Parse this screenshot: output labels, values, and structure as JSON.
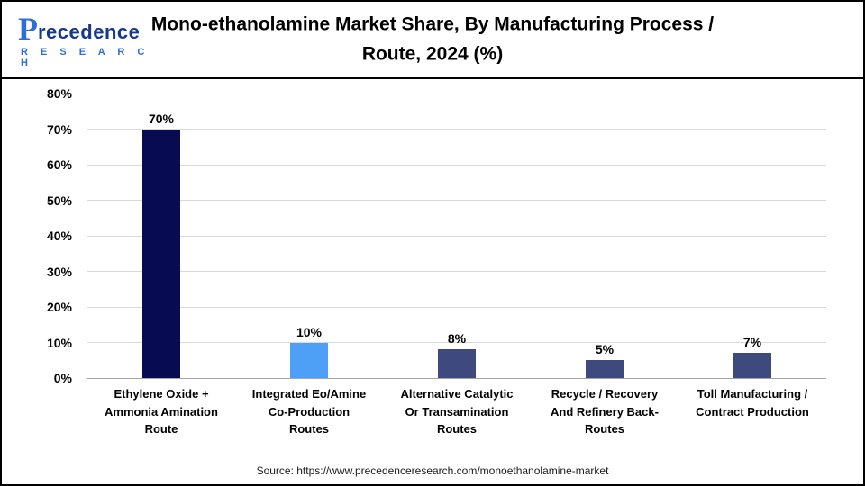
{
  "logo": {
    "p": "P",
    "name_rest": "recedence",
    "sub": "R E S E A R C H"
  },
  "header": {
    "title": "Mono-ethanolamine Market Share, By Manufacturing Process / Route, 2024 (%)"
  },
  "chart_data": {
    "type": "bar",
    "title": "Mono-ethanolamine Market Share, By Manufacturing Process / Route, 2024 (%)",
    "categories": [
      "Ethylene Oxide +\nAmmonia Amination\nRoute",
      "Integrated Eo/Amine\nCo-Production\nRoutes",
      "Alternative Catalytic\nOr Transamination\nRoutes",
      "Recycle / Recovery\nAnd Refinery Back-\nRoutes",
      "Toll Manufacturing /\nContract Production"
    ],
    "values": [
      70,
      10,
      8,
      5,
      7
    ],
    "value_labels": [
      "70%",
      "10%",
      "8%",
      "5%",
      "7%"
    ],
    "bar_colors": [
      "#070b52",
      "#4da0f5",
      "#3e4a7d",
      "#3e4a7d",
      "#3e4a7d"
    ],
    "xlabel": "",
    "ylabel": "",
    "ylim": [
      0,
      80
    ],
    "yticks": [
      0,
      10,
      20,
      30,
      40,
      50,
      60,
      70,
      80
    ],
    "ytick_suffix": "%",
    "grid": "horizontal",
    "legend": "none"
  },
  "source": {
    "text": "Source: https://www.precedenceresearch.com/monoethanolamine-market"
  },
  "colors": {
    "navy_bar": "#070b52",
    "blue_bar": "#4da0f5",
    "slate_bar": "#3e4a7d",
    "gridline": "#d9d9d9",
    "logo_blue": "#2d6fd6",
    "logo_dark_blue": "#14388c"
  }
}
